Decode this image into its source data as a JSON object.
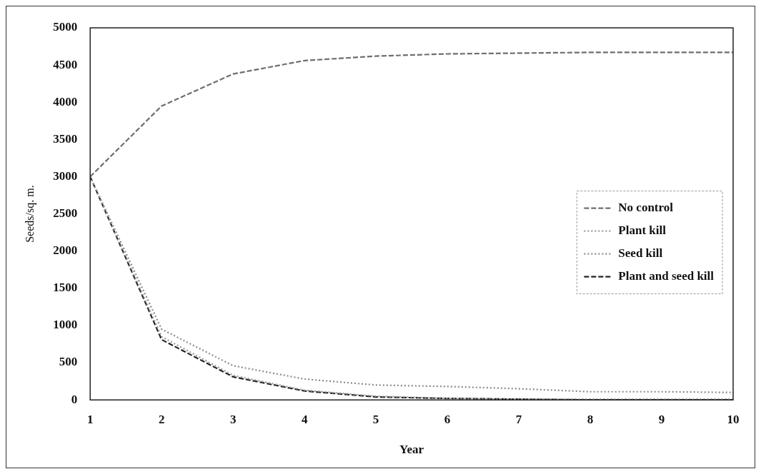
{
  "chart_data": {
    "type": "line",
    "xlabel": "Year",
    "ylabel": "Seeds/sq. m.",
    "x": [
      1,
      2,
      3,
      4,
      5,
      6,
      7,
      8,
      9,
      10
    ],
    "xlim": [
      1,
      10
    ],
    "xticks": [
      1,
      2,
      3,
      4,
      5,
      6,
      7,
      8,
      9,
      10
    ],
    "ylim": [
      0,
      5000
    ],
    "yticks": [
      0,
      500,
      1000,
      1500,
      2000,
      2500,
      3000,
      3500,
      4000,
      4500,
      5000
    ],
    "series": [
      {
        "name": "No control",
        "color": "#6e6e6e",
        "line_style": "dashed",
        "values": [
          3000,
          3950,
          4380,
          4560,
          4620,
          4650,
          4660,
          4670,
          4670,
          4670
        ]
      },
      {
        "name": "Plant kill",
        "color": "#9a9a9a",
        "line_style": "dotted",
        "values": [
          3000,
          850,
          330,
          130,
          50,
          20,
          10,
          10,
          10,
          10
        ]
      },
      {
        "name": "Seed kill",
        "color": "#8a8a8a",
        "line_style": "dotted",
        "values": [
          3000,
          950,
          460,
          280,
          200,
          180,
          150,
          110,
          110,
          100
        ]
      },
      {
        "name": "Plant and seed kill",
        "color": "#222222",
        "line_style": "dashed",
        "values": [
          3000,
          810,
          310,
          120,
          40,
          20,
          10,
          0,
          0,
          0
        ]
      }
    ],
    "legend": "right",
    "grid": false,
    "marker": "none"
  }
}
